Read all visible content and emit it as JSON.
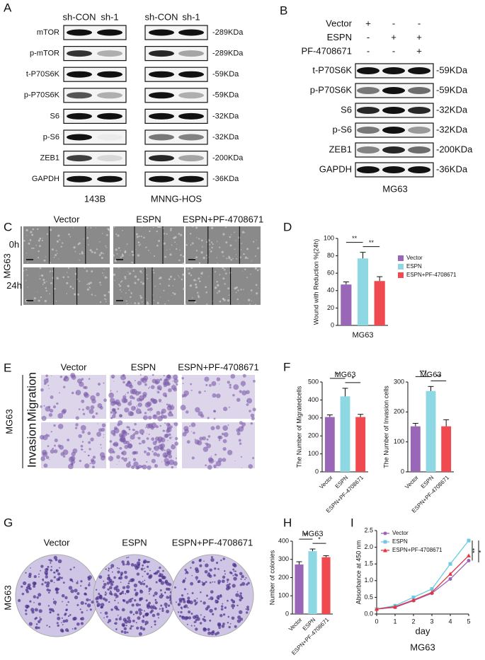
{
  "panel_labels": [
    "A",
    "B",
    "C",
    "D",
    "E",
    "F",
    "G",
    "H",
    "I"
  ],
  "blot_a": {
    "columns": [
      "sh-CON",
      "sh-1",
      "sh-CON",
      "sh-1"
    ],
    "groups": [
      "143B",
      "MNNG-HOS"
    ],
    "rows": [
      {
        "protein": "mTOR",
        "size": "-289KDa"
      },
      {
        "protein": "p-mTOR",
        "size": "-289KDa"
      },
      {
        "protein": "t-P70S6K",
        "size": "-59KDa"
      },
      {
        "protein": "p-P70S6K",
        "size": "-59KDa"
      },
      {
        "protein": "S6",
        "size": "-32KDa"
      },
      {
        "protein": "p-S6",
        "size": "-32KDa"
      },
      {
        "protein": "ZEB1",
        "size": "-200KDa"
      },
      {
        "protein": "GAPDH",
        "size": "-36KDa"
      }
    ]
  },
  "blot_b": {
    "conditions": [
      {
        "name": "Vector",
        "signs": [
          "+",
          "-",
          "-"
        ]
      },
      {
        "name": "ESPN",
        "signs": [
          "-",
          "+",
          "+"
        ]
      },
      {
        "name": "PF-4708671",
        "signs": [
          "-",
          "-",
          "+"
        ]
      }
    ],
    "rows": [
      {
        "protein": "t-P70S6K",
        "size": "-59KDa"
      },
      {
        "protein": "p-P70S6K",
        "size": "-59KDa"
      },
      {
        "protein": "S6",
        "size": "-32KDa"
      },
      {
        "protein": "p-S6",
        "size": "-32KDa"
      },
      {
        "protein": "ZEB1",
        "size": "-200KDa"
      },
      {
        "protein": "GAPDH",
        "size": "-36KDa"
      }
    ],
    "caption": "MG63"
  },
  "wound": {
    "columns": [
      "Vector",
      "ESPN",
      "ESPN+PF-4708671"
    ],
    "rows": [
      "0h",
      "24h"
    ],
    "cell_line": "MG63"
  },
  "transwell": {
    "columns": [
      "Vector",
      "ESPN",
      "ESPN+PF-4708671"
    ],
    "rows": [
      "Migration",
      "Invasion"
    ],
    "cell_line": "MG63"
  },
  "colony": {
    "columns": [
      "Vector",
      "ESPN",
      "ESPN+PF-4708671"
    ],
    "cell_line": "MG63"
  },
  "chart_data": [
    {
      "type": "bar",
      "ylabel": "Wound with Reduction %(24h)",
      "categories": [
        "MG63"
      ],
      "series": [
        {
          "name": "Vector",
          "color": "#9966b8",
          "values": [
            47
          ],
          "errors": [
            3
          ]
        },
        {
          "name": "ESPN",
          "color": "#8ed8e4",
          "values": [
            77
          ],
          "errors": [
            7
          ]
        },
        {
          "name": "ESPN+PF-4708671",
          "color": "#ee4a50",
          "values": [
            51
          ],
          "errors": [
            5
          ]
        }
      ],
      "ylim": [
        0,
        100
      ],
      "yticks": [
        0,
        20,
        40,
        60,
        80,
        100
      ],
      "annotations": [
        "**",
        "**"
      ],
      "legend": "right"
    },
    {
      "type": "bar",
      "title": "MG63",
      "ylabel": "The Number of Migratedcells",
      "categories": [
        "Vector",
        "ESPN",
        "ESPN+PF-4708671"
      ],
      "values": [
        305,
        420,
        305
      ],
      "errors": [
        12,
        45,
        15
      ],
      "colors": [
        "#9966b8",
        "#8ed8e4",
        "#ee4a50"
      ],
      "ylim": [
        0,
        500
      ],
      "yticks": [
        0,
        100,
        200,
        300,
        400,
        500
      ],
      "annotations": [
        "*",
        "*"
      ]
    },
    {
      "type": "bar",
      "title": "MG63",
      "ylabel": "The Number of Invasion cells",
      "categories": [
        "Vector",
        "ESPN",
        "ESPN+PF-4708671"
      ],
      "values": [
        152,
        270,
        152
      ],
      "errors": [
        10,
        15,
        22
      ],
      "colors": [
        "#9966b8",
        "#8ed8e4",
        "#ee4a50"
      ],
      "ylim": [
        0,
        300
      ],
      "yticks": [
        0,
        100,
        200,
        300
      ],
      "annotations": [
        "***",
        "**"
      ]
    },
    {
      "type": "bar",
      "title": "MG63",
      "ylabel": "Number of colonies",
      "categories": [
        "Vector",
        "ESPN",
        "ESPN+PF-4708671"
      ],
      "values": [
        272,
        345,
        312
      ],
      "errors": [
        15,
        12,
        8
      ],
      "colors": [
        "#9966b8",
        "#8ed8e4",
        "#ee4a50"
      ],
      "ylim": [
        0,
        400
      ],
      "yticks": [
        0,
        100,
        200,
        300,
        400
      ],
      "annotations": [
        "**",
        "*"
      ]
    },
    {
      "type": "line",
      "ylabel": "Absorbance at 450 nm",
      "xlabel": "day",
      "caption": "MG63",
      "x": [
        0,
        1,
        2,
        3,
        4,
        5
      ],
      "series": [
        {
          "name": "Vector",
          "color": "#9966b8",
          "marker": "circle",
          "values": [
            0.15,
            0.2,
            0.4,
            0.62,
            1.05,
            1.6
          ]
        },
        {
          "name": "ESPN",
          "color": "#6ccbe0",
          "marker": "square",
          "values": [
            0.15,
            0.25,
            0.5,
            0.75,
            1.5,
            2.2
          ]
        },
        {
          "name": "ESPN+PF-4708671",
          "color": "#e8323c",
          "marker": "triangle",
          "values": [
            0.15,
            0.22,
            0.42,
            0.65,
            1.2,
            1.75
          ]
        }
      ],
      "xlim": [
        0,
        5
      ],
      "xticks": [
        0,
        1,
        2,
        3,
        4,
        5
      ],
      "ylim": [
        0,
        2.5
      ],
      "yticks": [
        {
          "value": 0,
          "label": "0.0"
        },
        0.5,
        {
          "value": 1,
          "label": "1.0"
        },
        1.5,
        {
          "value": 2,
          "label": "2.0"
        },
        2.5
      ],
      "annotations": [
        "**",
        "*"
      ],
      "legend": "top-left"
    }
  ]
}
